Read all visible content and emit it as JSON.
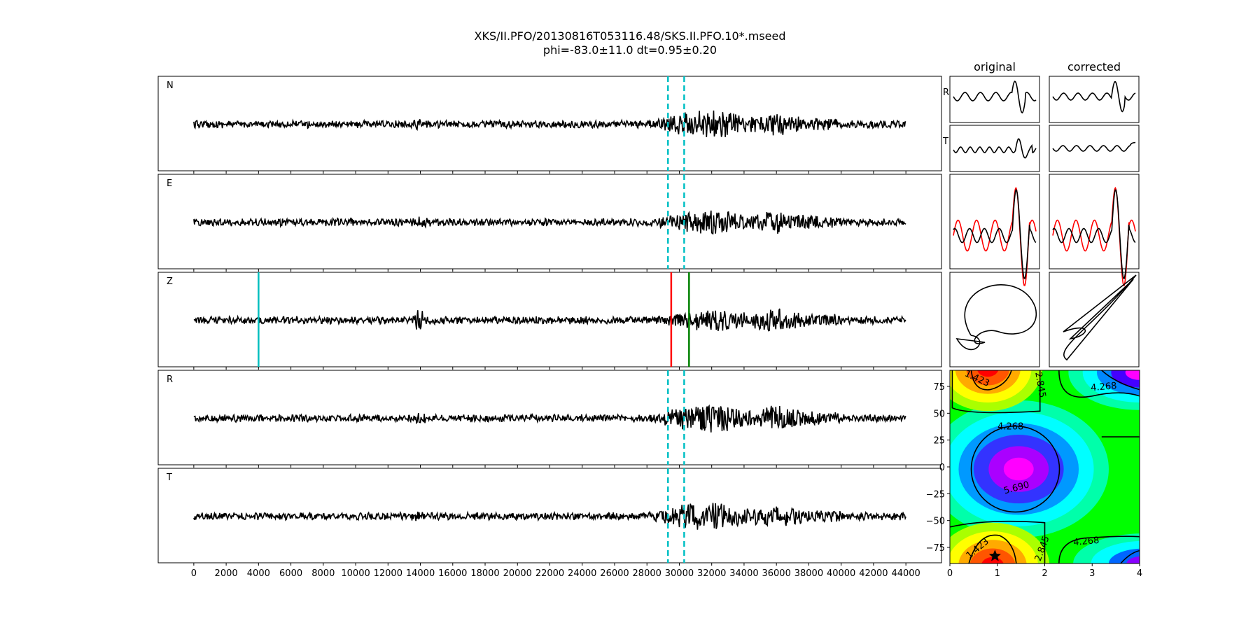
{
  "title": "XKS/II.PFO/20130816T053116.48/SKS.II.PFO.10*.mseed",
  "subtitle": "phi=-83.0±11.0 dt=0.95±0.20",
  "column_headers": {
    "original": "original",
    "corrected": "corrected"
  },
  "colors": {
    "trace": "#000000",
    "window_marker": "#00bfc4",
    "z_marker_cyan": "#00bfbf",
    "z_marker_red": "#ff0000",
    "z_marker_green": "#008000",
    "fast_red": "#ff0000"
  },
  "chart_data": [
    {
      "type": "line",
      "panels": [
        {
          "label": "N",
          "markers": [
            {
              "x": 29300,
              "style": "dashed",
              "color": "#00bfc4"
            },
            {
              "x": 30300,
              "style": "dashed",
              "color": "#00bfc4"
            }
          ]
        },
        {
          "label": "E",
          "markers": [
            {
              "x": 29300,
              "style": "dashed",
              "color": "#00bfc4"
            },
            {
              "x": 30300,
              "style": "dashed",
              "color": "#00bfc4"
            }
          ]
        },
        {
          "label": "Z",
          "markers": [
            {
              "x": 4000,
              "style": "solid",
              "color": "#00bfbf"
            },
            {
              "x": 29500,
              "style": "solid",
              "color": "#ff0000"
            },
            {
              "x": 30600,
              "style": "solid",
              "color": "#008000"
            }
          ]
        },
        {
          "label": "R",
          "markers": [
            {
              "x": 29300,
              "style": "dashed",
              "color": "#00bfc4"
            },
            {
              "x": 30300,
              "style": "dashed",
              "color": "#00bfc4"
            }
          ]
        },
        {
          "label": "T",
          "markers": [
            {
              "x": 29300,
              "style": "dashed",
              "color": "#00bfc4"
            },
            {
              "x": 30300,
              "style": "dashed",
              "color": "#00bfc4"
            }
          ]
        }
      ],
      "x_ticks": [
        0,
        2000,
        4000,
        6000,
        8000,
        10000,
        12000,
        14000,
        16000,
        18000,
        20000,
        22000,
        24000,
        26000,
        28000,
        30000,
        32000,
        34000,
        36000,
        38000,
        40000,
        42000,
        44000
      ],
      "xlim": [
        -2200,
        46200
      ],
      "trace_x_range": [
        0,
        44000
      ],
      "note_bursts": [
        14000,
        30300,
        32500,
        36000
      ]
    },
    {
      "type": "line",
      "panels": [
        {
          "column": "original",
          "row_label": "R"
        },
        {
          "column": "original",
          "row_label": "T"
        },
        {
          "column": "original",
          "row": "overlay"
        },
        {
          "column": "original",
          "row": "particle-motion"
        },
        {
          "column": "corrected",
          "row_label": ""
        },
        {
          "column": "corrected",
          "row_label": ""
        },
        {
          "column": "corrected",
          "row": "overlay"
        },
        {
          "column": "corrected",
          "row": "particle-motion"
        }
      ]
    },
    {
      "type": "heatmap",
      "x_ticks": [
        0,
        1,
        2,
        3,
        4
      ],
      "y_ticks": [
        75,
        50,
        25,
        0,
        -25,
        -50,
        -75
      ],
      "xlim": [
        0,
        4
      ],
      "ylim": [
        -90,
        90
      ],
      "contour_labels": [
        "1.423",
        "2.845",
        "4.268",
        "4.268",
        "5.690",
        "1.423",
        "2.845",
        "4.268"
      ],
      "best": {
        "dt": 0.95,
        "phi": -83.0
      }
    }
  ]
}
